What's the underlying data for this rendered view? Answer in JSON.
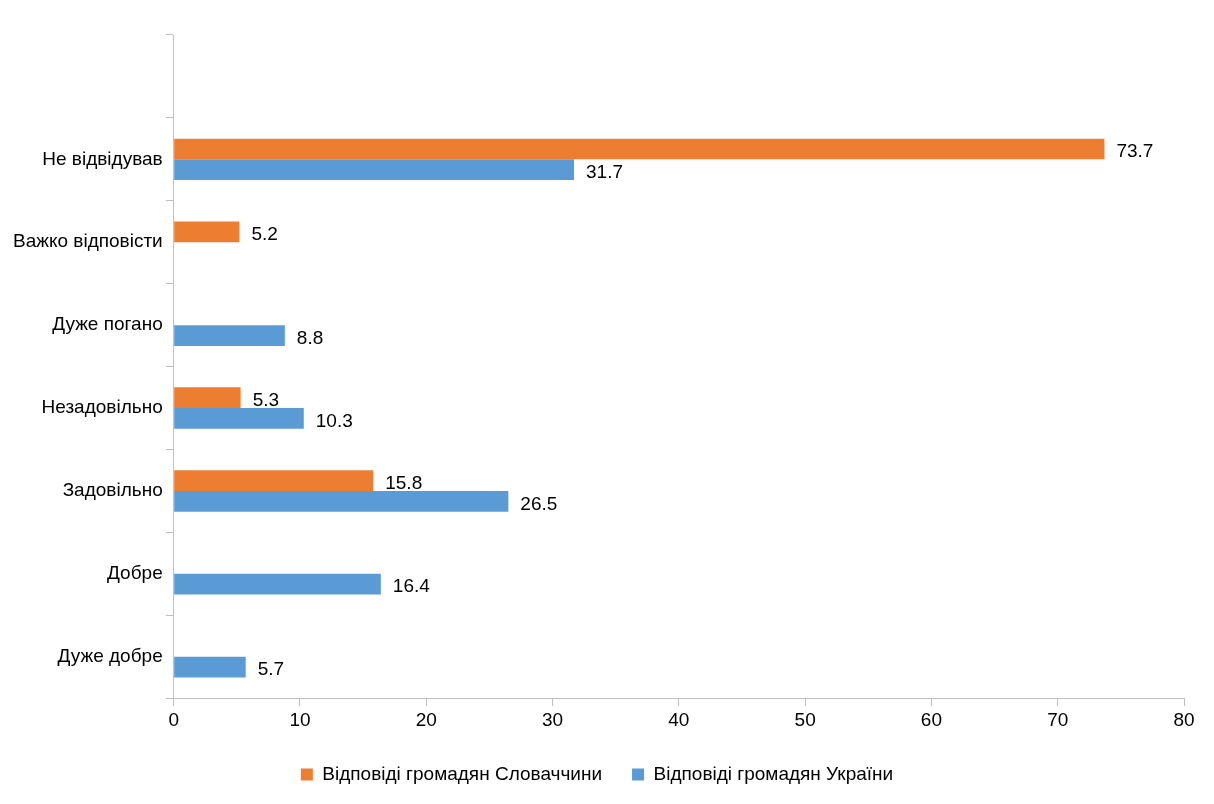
{
  "chart_data": {
    "type": "bar",
    "orientation": "horizontal",
    "categories": [
      null,
      "Не відвідував",
      "Важко відповісти",
      "Дуже погано",
      "Незадовільно",
      "Задовільно",
      "Добре",
      "Дуже добре"
    ],
    "series": [
      {
        "name": "Відповіді громадян Словаччини",
        "color": "#ed7d31",
        "values": [
          null,
          73.7,
          5.2,
          null,
          5.3,
          15.8,
          null,
          null
        ]
      },
      {
        "name": "Відповіді громадян України",
        "color": "#5b9bd5",
        "values": [
          null,
          31.7,
          null,
          8.8,
          10.3,
          26.5,
          16.4,
          5.7
        ]
      }
    ],
    "xlim": [
      0,
      80
    ],
    "xticks": [
      0,
      10,
      20,
      30,
      40,
      50,
      60,
      70,
      80
    ],
    "data_labels": true,
    "grid": false,
    "legend": "bottom"
  }
}
